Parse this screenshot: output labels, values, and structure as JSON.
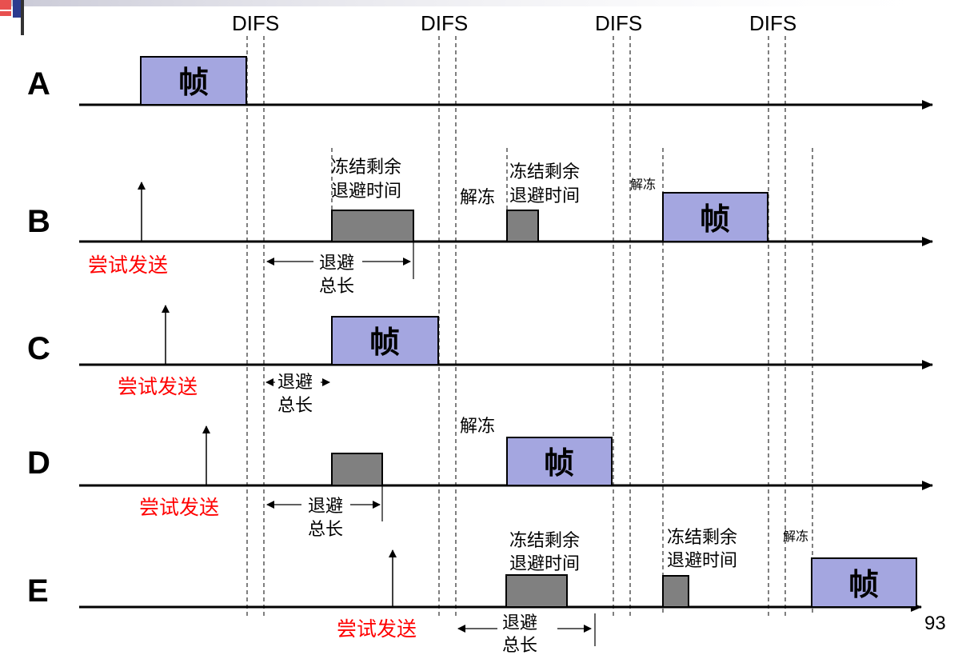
{
  "difs_label": "DIFS",
  "stations": {
    "a": {
      "name": "A"
    },
    "b": {
      "name": "B"
    },
    "c": {
      "name": "C"
    },
    "d": {
      "name": "D"
    },
    "e": {
      "name": "E"
    }
  },
  "labels": {
    "frame": "帧",
    "attempt": "尝试发送",
    "freeze_1": "冻结剩余",
    "freeze_2": "退避时间",
    "unfreeze": "解冻",
    "backoff_1": "退避",
    "backoff_2": "总长"
  },
  "page_number": "93",
  "colors": {
    "frame_fill": "#a4a6e0",
    "backoff_fill": "#808080",
    "attempt_text": "#ff0000",
    "corner_red": "#e8504f",
    "corner_blue": "#2b3a8f"
  }
}
